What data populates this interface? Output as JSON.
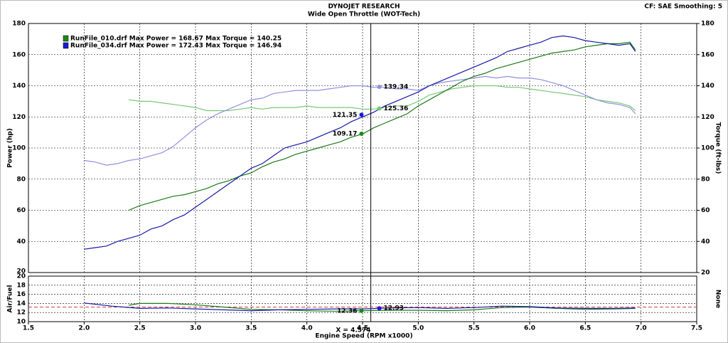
{
  "header_note": "CF: SAE  Smoothing: 5",
  "chart_data": [
    {
      "type": "line",
      "title": "DYNOJET RESEARCH",
      "subtitle": "Wide Open Throttle (WOT-Tech)",
      "ylabel": "Power (hp)",
      "y2label": "Torque (ft-lbs)",
      "grid": true,
      "xlim": [
        1.5,
        7.5
      ],
      "ylim": [
        20,
        180
      ],
      "yticks": [
        20,
        40,
        60,
        80,
        100,
        120,
        140,
        160,
        180
      ],
      "y2lim": [
        20,
        180
      ],
      "y2ticks": [
        20,
        40,
        60,
        80,
        100,
        120,
        140,
        160,
        180
      ],
      "cursor": {
        "value": 4.574,
        "label": "X = 4.574"
      },
      "legend": [
        {
          "text": "RunFile_010.drf Max Power = 168.67 Max Torque = 140.25",
          "color": "#1a8a1a"
        },
        {
          "text": "RunFile_034.drf Max Power = 172.43 Max Torque = 146.94",
          "color": "#1a1ad0"
        }
      ],
      "series": [
        {
          "color": "#78c878",
          "axis": "y2",
          "x": [
            2.4,
            2.5,
            2.6,
            2.7,
            2.8,
            2.9,
            3.0,
            3.1,
            3.2,
            3.3,
            3.4,
            3.5,
            3.6,
            3.7,
            3.8,
            3.9,
            4.0,
            4.1,
            4.2,
            4.3,
            4.4,
            4.5,
            4.6,
            4.7,
            4.8,
            4.9,
            5.0,
            5.1,
            5.2,
            5.3,
            5.4,
            5.5,
            5.6,
            5.7,
            5.8,
            5.9,
            6.0,
            6.1,
            6.2,
            6.3,
            6.4,
            6.5,
            6.6,
            6.7,
            6.8,
            6.9,
            6.95
          ],
          "values": [
            131,
            130,
            130,
            129,
            128,
            127,
            126,
            124,
            124,
            124,
            125,
            126,
            125,
            126,
            126,
            126,
            127,
            126,
            126,
            126,
            126,
            125,
            125,
            126,
            127,
            127,
            130,
            134,
            136,
            138,
            139,
            140,
            140,
            140,
            139,
            139,
            138,
            137,
            136,
            135,
            134,
            133,
            131,
            130,
            129,
            127,
            124
          ]
        },
        {
          "color": "#9090e0",
          "axis": "y2",
          "x": [
            2.0,
            2.1,
            2.2,
            2.3,
            2.4,
            2.5,
            2.6,
            2.7,
            2.8,
            2.9,
            3.0,
            3.1,
            3.2,
            3.3,
            3.4,
            3.5,
            3.6,
            3.7,
            3.8,
            3.9,
            4.0,
            4.1,
            4.2,
            4.3,
            4.4,
            4.5,
            4.6,
            4.7,
            4.8,
            4.9,
            5.0,
            5.1,
            5.2,
            5.3,
            5.4,
            5.5,
            5.6,
            5.7,
            5.8,
            5.9,
            6.0,
            6.1,
            6.2,
            6.3,
            6.4,
            6.5,
            6.6,
            6.7,
            6.8,
            6.9,
            6.95
          ],
          "values": [
            92,
            91,
            89,
            90,
            92,
            93,
            95,
            97,
            101,
            107,
            113,
            118,
            122,
            125,
            128,
            131,
            132,
            135,
            136,
            137,
            137,
            137,
            138,
            139,
            140,
            140,
            139,
            139,
            138,
            138,
            137,
            140,
            142,
            143,
            144,
            145,
            146,
            145,
            146,
            145,
            145,
            144,
            142,
            140,
            137,
            134,
            131,
            129,
            128,
            126,
            122
          ]
        },
        {
          "color": "#1a7a1a",
          "x": [
            2.4,
            2.5,
            2.6,
            2.7,
            2.8,
            2.9,
            3.0,
            3.1,
            3.2,
            3.3,
            3.4,
            3.5,
            3.6,
            3.7,
            3.8,
            3.9,
            4.0,
            4.1,
            4.2,
            4.3,
            4.4,
            4.5,
            4.6,
            4.7,
            4.8,
            4.9,
            5.0,
            5.1,
            5.2,
            5.3,
            5.4,
            5.5,
            5.6,
            5.7,
            5.8,
            5.9,
            6.0,
            6.1,
            6.2,
            6.3,
            6.4,
            6.5,
            6.6,
            6.7,
            6.8,
            6.9,
            6.95
          ],
          "values": [
            60,
            63,
            65,
            67,
            69,
            70,
            72,
            74,
            77,
            79,
            82,
            84,
            88,
            91,
            93,
            96,
            98,
            100,
            102,
            104,
            107,
            109,
            113,
            116,
            119,
            122,
            127,
            131,
            135,
            139,
            143,
            146,
            148,
            151,
            153,
            155,
            157,
            159,
            161,
            162,
            163,
            165,
            166,
            167,
            167,
            168,
            163
          ]
        },
        {
          "color": "#1a1aa8",
          "x": [
            2.0,
            2.1,
            2.2,
            2.3,
            2.4,
            2.5,
            2.6,
            2.7,
            2.8,
            2.9,
            3.0,
            3.1,
            3.2,
            3.3,
            3.4,
            3.5,
            3.6,
            3.7,
            3.8,
            3.9,
            4.0,
            4.1,
            4.2,
            4.3,
            4.4,
            4.5,
            4.6,
            4.7,
            4.8,
            4.9,
            5.0,
            5.1,
            5.2,
            5.3,
            5.4,
            5.5,
            5.6,
            5.7,
            5.8,
            5.9,
            6.0,
            6.1,
            6.2,
            6.3,
            6.4,
            6.5,
            6.6,
            6.7,
            6.8,
            6.9,
            6.95
          ],
          "values": [
            35,
            36,
            37,
            40,
            42,
            44,
            48,
            50,
            54,
            57,
            62,
            67,
            72,
            77,
            82,
            87,
            90,
            95,
            100,
            102,
            104,
            107,
            110,
            113,
            117,
            120,
            123,
            127,
            130,
            133,
            136,
            140,
            143,
            146,
            149,
            152,
            155,
            158,
            162,
            164,
            166,
            168,
            171,
            172,
            171,
            169,
            168,
            167,
            166,
            167,
            162
          ]
        }
      ],
      "markers": [
        {
          "x": 4.65,
          "y": 139.34,
          "color": "#9090e0"
        },
        {
          "x": 4.49,
          "y": 121.35,
          "color": "#1a1ad0"
        },
        {
          "x": 4.65,
          "y": 125.36,
          "color": "#78c878"
        },
        {
          "x": 4.49,
          "y": 109.17,
          "color": "#1a8a1a"
        }
      ]
    },
    {
      "type": "line",
      "ylabel": "Air/Fuel",
      "y2label": "None",
      "xlabel": "Engine Speed (RPM x1000)",
      "grid": true,
      "xlim": [
        1.5,
        7.5
      ],
      "xticks": [
        1.5,
        {
          "value": 2,
          "label": "2.0"
        },
        2.5,
        {
          "value": 3,
          "label": "3.0"
        },
        3.5,
        {
          "value": 4,
          "label": "4.0"
        },
        4.5,
        {
          "value": 5,
          "label": "5.0"
        },
        5.5,
        {
          "value": 6,
          "label": "6.0"
        },
        6.5,
        {
          "value": 7,
          "label": "7.0"
        },
        7.5
      ],
      "ylim": [
        10,
        20
      ],
      "yticks": [
        10,
        12,
        14,
        16,
        18,
        20
      ],
      "reference": 13.2,
      "series": [
        {
          "color": "#1a7a1a",
          "x": [
            2.4,
            2.5,
            2.75,
            3.0,
            3.25,
            3.5,
            3.75,
            4.0,
            4.25,
            4.5,
            4.75,
            5.0,
            5.25,
            5.5,
            5.75,
            6.0,
            6.25,
            6.5,
            6.75,
            6.95
          ],
          "values": [
            13.6,
            14.0,
            14.0,
            13.7,
            13.2,
            12.7,
            12.6,
            12.4,
            12.3,
            12.4,
            12.5,
            12.5,
            12.4,
            12.6,
            13.1,
            13.2,
            12.9,
            12.7,
            12.8,
            12.9
          ]
        },
        {
          "color": "#1a1aa8",
          "x": [
            2.0,
            2.25,
            2.5,
            2.75,
            3.0,
            3.25,
            3.5,
            3.75,
            4.0,
            4.25,
            4.5,
            4.75,
            5.0,
            5.25,
            5.5,
            5.75,
            6.0,
            6.25,
            6.5,
            6.75,
            6.95
          ],
          "values": [
            14.1,
            13.4,
            12.9,
            13.0,
            12.8,
            12.6,
            12.4,
            12.6,
            12.7,
            12.8,
            12.8,
            13.0,
            13.1,
            12.9,
            13.1,
            13.4,
            13.3,
            13.0,
            12.9,
            12.9,
            13.0
          ]
        }
      ],
      "markers": [
        {
          "x": 4.49,
          "y": 12.36,
          "color": "#1a8a1a"
        },
        {
          "x": 4.65,
          "y": 12.93,
          "color": "#1a1ad0"
        }
      ]
    }
  ]
}
